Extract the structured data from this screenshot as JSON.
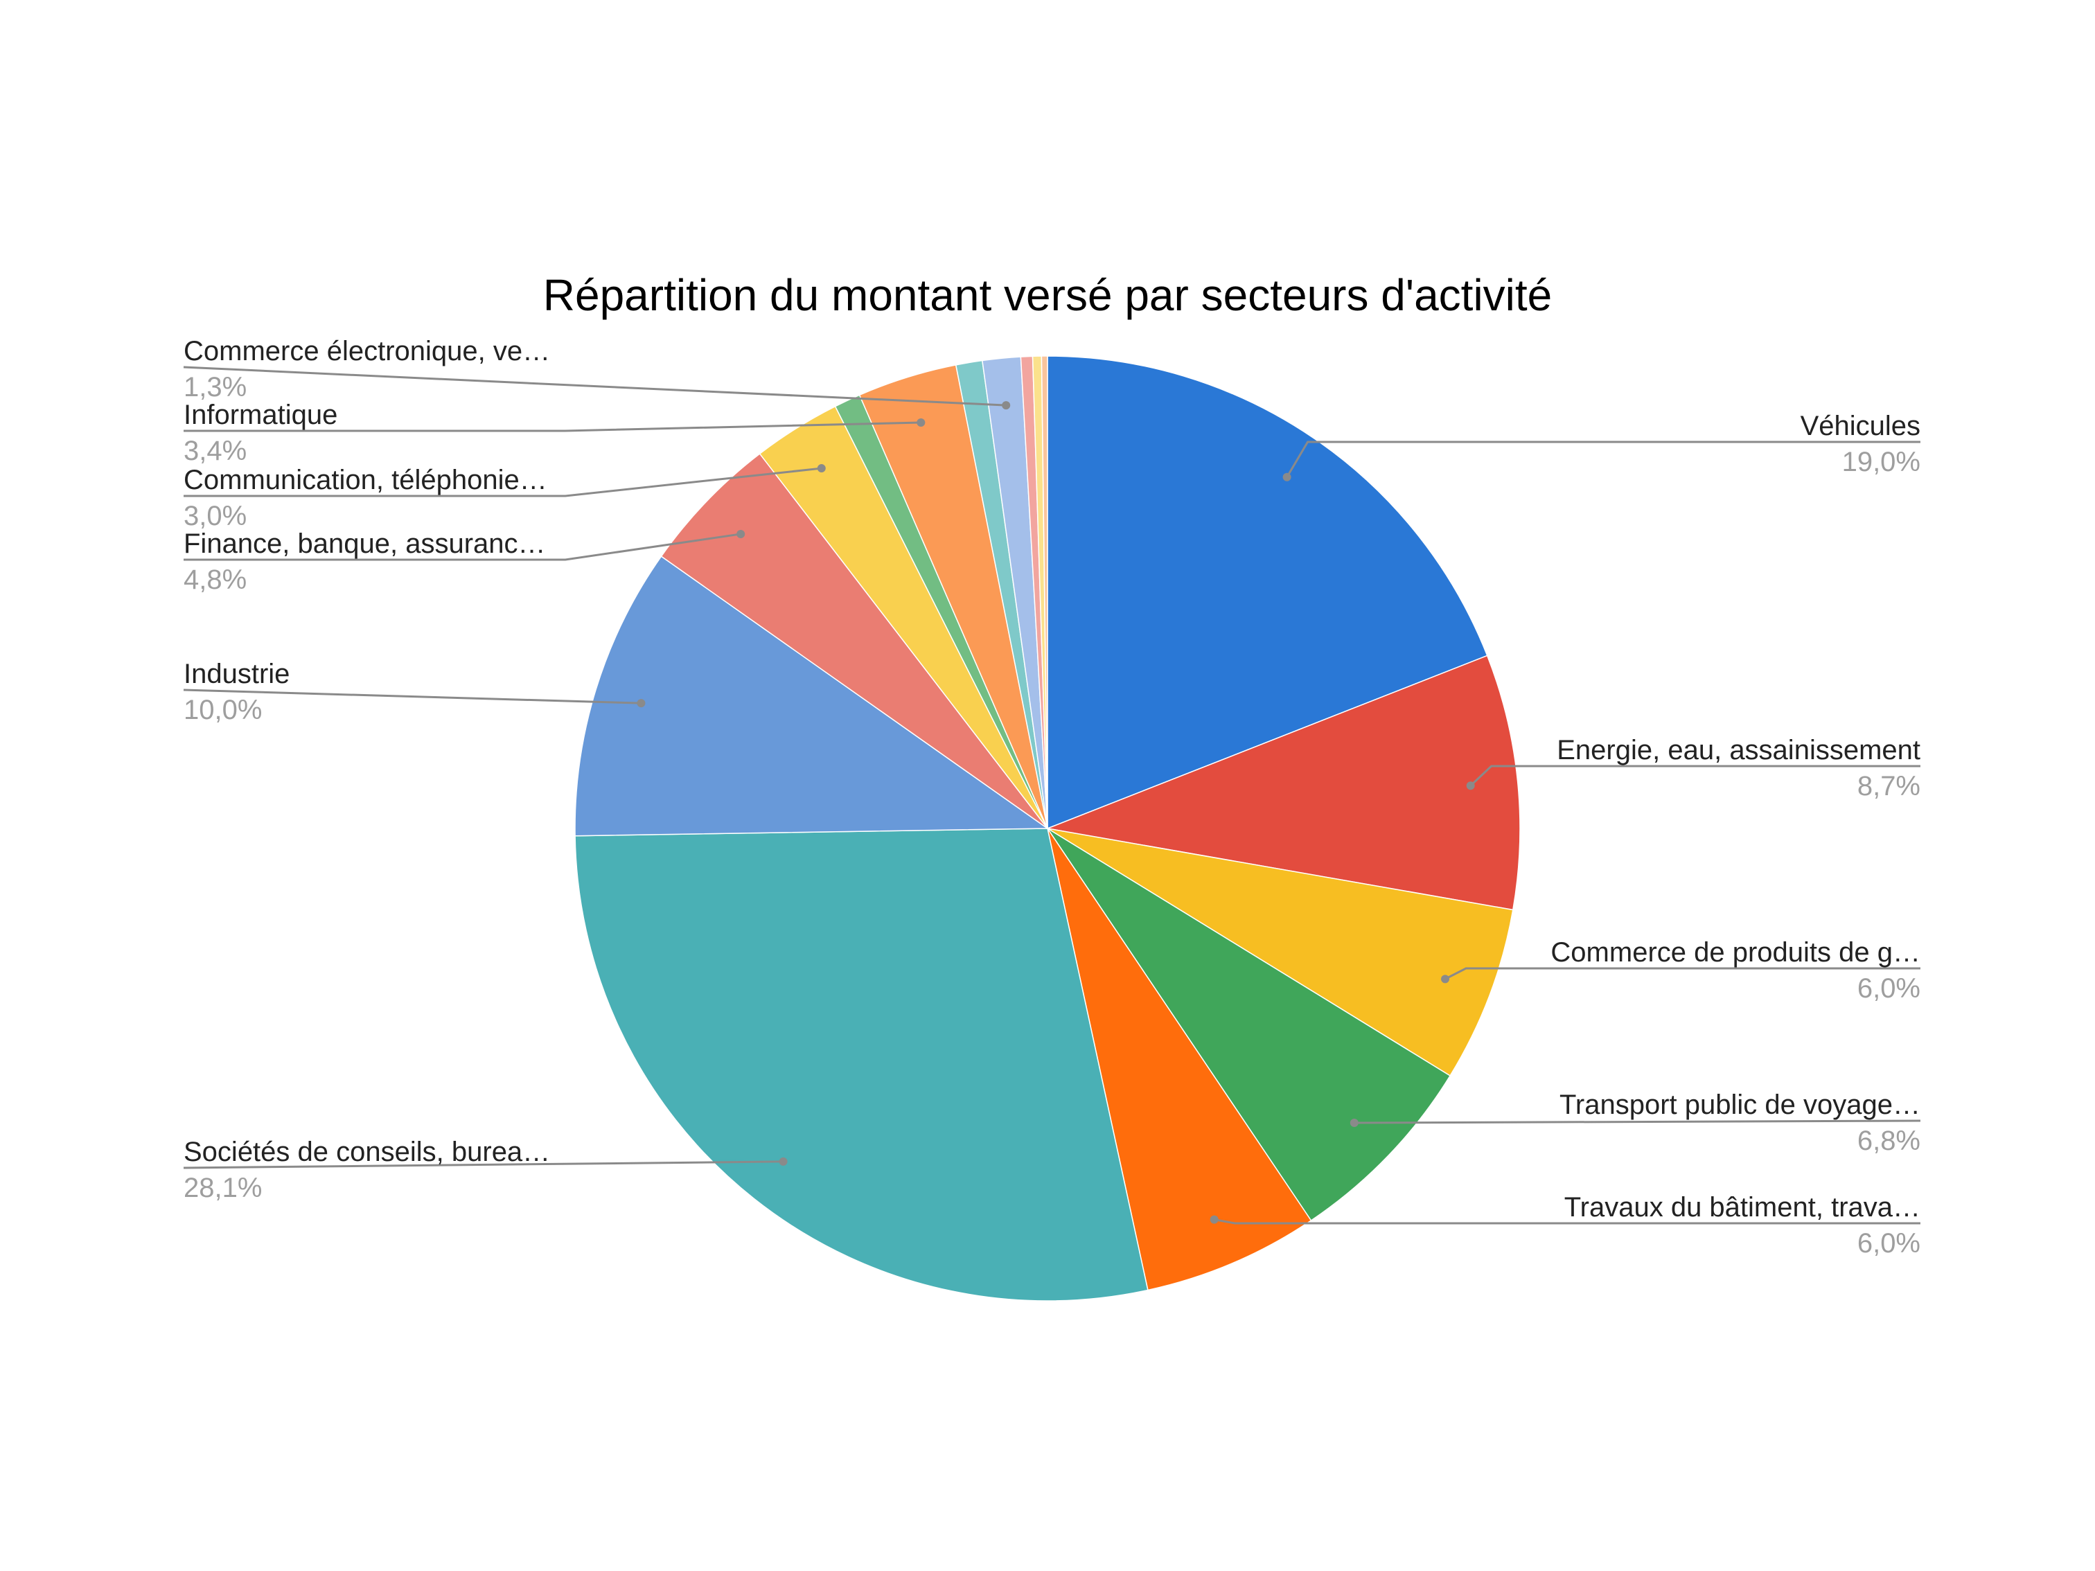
{
  "chart_data": {
    "type": "pie",
    "title": "Répartition du montant versé par secteurs d'activité",
    "slices": [
      {
        "label": "Véhicules",
        "display_value": "19,0%",
        "value": 19.0,
        "color": "#2a78d6",
        "labeled": true
      },
      {
        "label": "Energie, eau, assainissement",
        "display_value": "8,7%",
        "value": 8.7,
        "color": "#e34c3e",
        "labeled": true
      },
      {
        "label": "Commerce de produits de g…",
        "display_value": "6,0%",
        "value": 6.0,
        "color": "#f7be22",
        "labeled": true
      },
      {
        "label": "Transport public de voyage…",
        "display_value": "6,8%",
        "value": 6.8,
        "color": "#40a65a",
        "labeled": true
      },
      {
        "label": "Travaux du bâtiment, trava…",
        "display_value": "6,0%",
        "value": 6.0,
        "color": "#ff6d0c",
        "labeled": true
      },
      {
        "label": "Sociétés de conseils, burea…",
        "display_value": "28,1%",
        "value": 28.1,
        "color": "#4ab0b5",
        "labeled": true
      },
      {
        "label": "Industrie",
        "display_value": "10,0%",
        "value": 10.0,
        "color": "#6899d9",
        "labeled": true
      },
      {
        "label": "Finance, banque, assuranc…",
        "display_value": "4,8%",
        "value": 4.8,
        "color": "#ea7d72",
        "labeled": true
      },
      {
        "label": "Communication, téléphonie…",
        "display_value": "3,0%",
        "value": 3.0,
        "color": "#f9d04f",
        "labeled": true
      },
      {
        "label": "",
        "display_value": "",
        "value": 0.9,
        "color": "#72bd83",
        "labeled": false
      },
      {
        "label": "Informatique",
        "display_value": "3,4%",
        "value": 3.4,
        "color": "#fb9a55",
        "labeled": true
      },
      {
        "label": "",
        "display_value": "",
        "value": 0.9,
        "color": "#7fc9c9",
        "labeled": false
      },
      {
        "label": "Commerce électronique, ve…",
        "display_value": "1,3%",
        "value": 1.3,
        "color": "#a4bfea",
        "labeled": true
      },
      {
        "label": "",
        "display_value": "",
        "value": 0.4,
        "color": "#f2a59f",
        "labeled": false
      },
      {
        "label": "",
        "display_value": "",
        "value": 0.3,
        "color": "#fbe18c",
        "labeled": false
      },
      {
        "label": "",
        "display_value": "",
        "value": 0.2,
        "color": "#f9c49c",
        "labeled": false
      }
    ],
    "legend": "labels-outside"
  }
}
